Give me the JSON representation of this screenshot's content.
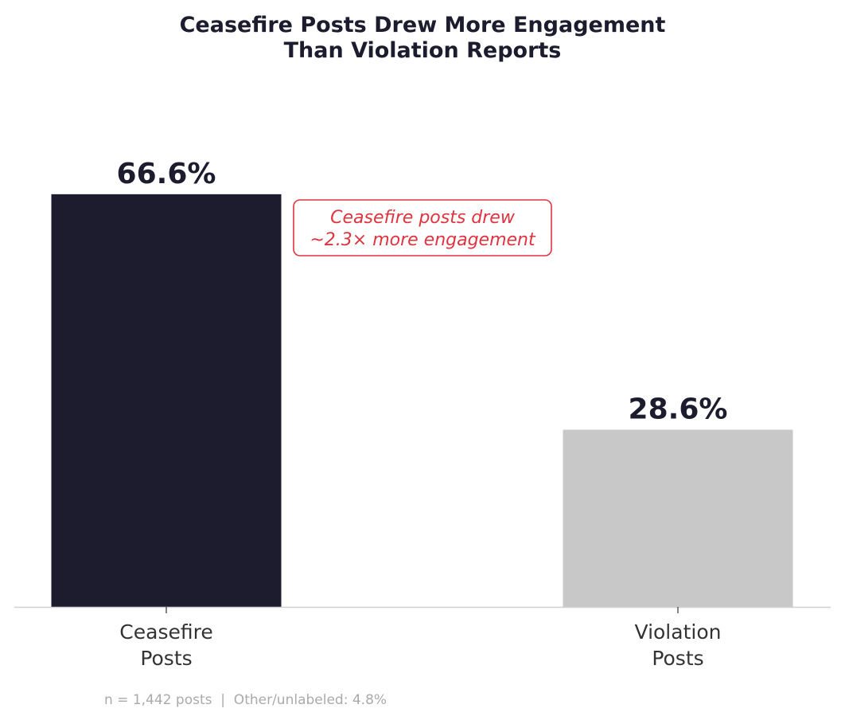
{
  "chart_data": {
    "type": "bar",
    "title_lines": [
      "Ceasefire Posts Drew More Engagement",
      "Than Violation Reports"
    ],
    "categories": [
      {
        "lines": [
          "Ceasefire",
          "Posts"
        ]
      },
      {
        "lines": [
          "Violation",
          "Posts"
        ]
      }
    ],
    "values": [
      66.6,
      28.6
    ],
    "value_labels": [
      "66.6%",
      "28.6%"
    ],
    "bar_colors": [
      "#1c1c2e",
      "#c8c8c8"
    ],
    "ylim": [
      0,
      100
    ],
    "grid": false,
    "annotation": {
      "lines": [
        "Ceasefire posts drew",
        "~2.3× more engagement"
      ],
      "color": "#e03340"
    },
    "footnote": "n = 1,442 posts  |  Other/unlabeled: 4.8%"
  }
}
